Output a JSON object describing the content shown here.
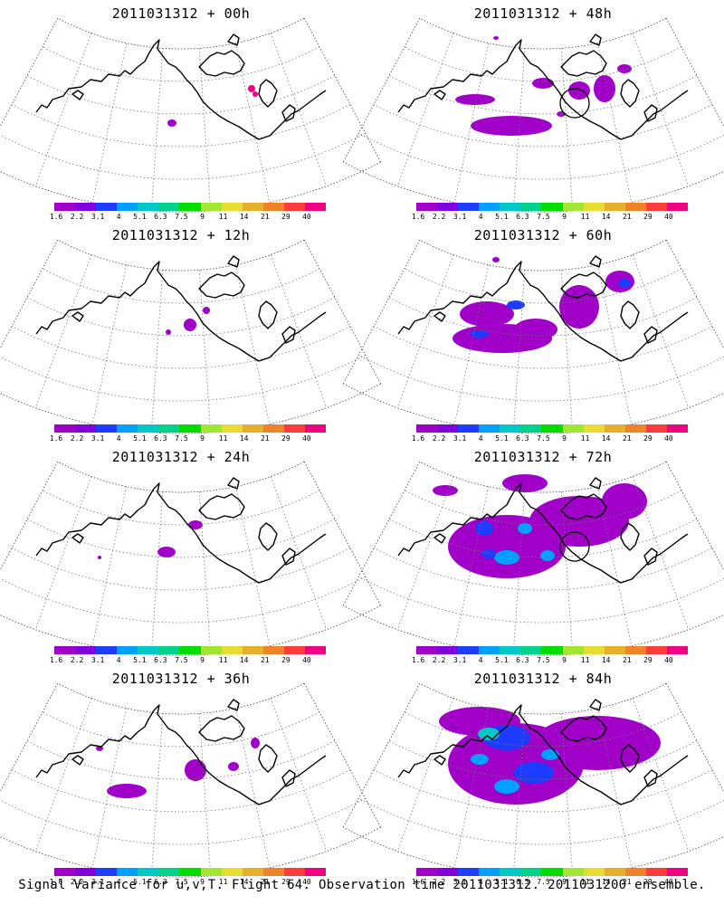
{
  "caption": "Signal Variance for u,v,T. Flight 64. Observation time 2011031312. 2011031200 ensemble.",
  "colorbar": {
    "labels": [
      "1.6",
      "2.2",
      "3.1",
      "4",
      "5.1",
      "6.3",
      "7.5",
      "9",
      "11",
      "14",
      "21",
      "29",
      "40"
    ],
    "colors": [
      "#a000c8",
      "#8200dc",
      "#1e3cff",
      "#00a0ff",
      "#00c8c8",
      "#00d28c",
      "#00dc00",
      "#a0e632",
      "#e6dc32",
      "#e6af2d",
      "#f08228",
      "#fa3c3c",
      "#f00082"
    ]
  },
  "panels": [
    {
      "title": "2011031312 + 00h",
      "circle": false,
      "blobs": [
        {
          "x": 170,
          "y": 112,
          "rx": 5,
          "ry": 4,
          "level": 0
        },
        {
          "x": 258,
          "y": 74,
          "rx": 4,
          "ry": 4,
          "level": 12
        },
        {
          "x": 262,
          "y": 80,
          "rx": 3,
          "ry": 3,
          "level": 12
        }
      ]
    },
    {
      "title": "2011031312 + 48h",
      "circle": true,
      "blobs": [
        {
          "x": 145,
          "y": 115,
          "rx": 45,
          "ry": 11,
          "level": 0
        },
        {
          "x": 105,
          "y": 86,
          "rx": 22,
          "ry": 6,
          "level": 0
        },
        {
          "x": 180,
          "y": 68,
          "rx": 12,
          "ry": 6,
          "level": 0
        },
        {
          "x": 220,
          "y": 76,
          "rx": 12,
          "ry": 10,
          "level": 0
        },
        {
          "x": 248,
          "y": 74,
          "rx": 12,
          "ry": 15,
          "level": 0
        },
        {
          "x": 270,
          "y": 52,
          "rx": 8,
          "ry": 5,
          "level": 0
        },
        {
          "x": 200,
          "y": 102,
          "rx": 5,
          "ry": 3,
          "level": 0
        },
        {
          "x": 128,
          "y": 18,
          "rx": 3,
          "ry": 2,
          "level": 0
        }
      ]
    },
    {
      "title": "2011031312 + 12h",
      "circle": false,
      "blobs": [
        {
          "x": 166,
          "y": 98,
          "rx": 3,
          "ry": 3,
          "level": 0
        },
        {
          "x": 190,
          "y": 90,
          "rx": 7,
          "ry": 7,
          "level": 0
        },
        {
          "x": 208,
          "y": 74,
          "rx": 4,
          "ry": 4,
          "level": 0
        }
      ]
    },
    {
      "title": "2011031312 + 60h",
      "circle": false,
      "blobs": [
        {
          "x": 135,
          "y": 105,
          "rx": 55,
          "ry": 16,
          "level": 0
        },
        {
          "x": 118,
          "y": 78,
          "rx": 30,
          "ry": 14,
          "level": 0
        },
        {
          "x": 220,
          "y": 70,
          "rx": 22,
          "ry": 24,
          "level": 0
        },
        {
          "x": 265,
          "y": 42,
          "rx": 16,
          "ry": 12,
          "level": 0
        },
        {
          "x": 172,
          "y": 95,
          "rx": 24,
          "ry": 12,
          "level": 0
        },
        {
          "x": 110,
          "y": 100,
          "rx": 10,
          "ry": 4,
          "level": 2
        },
        {
          "x": 150,
          "y": 68,
          "rx": 10,
          "ry": 5,
          "level": 2
        },
        {
          "x": 270,
          "y": 44,
          "rx": 7,
          "ry": 5,
          "level": 2
        },
        {
          "x": 128,
          "y": 18,
          "rx": 4,
          "ry": 3,
          "level": 0
        }
      ]
    },
    {
      "title": "2011031312 + 24h",
      "circle": false,
      "blobs": [
        {
          "x": 164,
          "y": 96,
          "rx": 10,
          "ry": 6,
          "level": 0
        },
        {
          "x": 196,
          "y": 66,
          "rx": 8,
          "ry": 5,
          "level": 0
        },
        {
          "x": 90,
          "y": 102,
          "rx": 2,
          "ry": 2,
          "level": 0
        }
      ]
    },
    {
      "title": "2011031312 + 72h",
      "circle": true,
      "blobs": [
        {
          "x": 140,
          "y": 90,
          "rx": 65,
          "ry": 35,
          "level": 0
        },
        {
          "x": 220,
          "y": 62,
          "rx": 55,
          "ry": 28,
          "level": 0
        },
        {
          "x": 160,
          "y": 20,
          "rx": 25,
          "ry": 10,
          "level": 0
        },
        {
          "x": 270,
          "y": 40,
          "rx": 25,
          "ry": 20,
          "level": 0
        },
        {
          "x": 72,
          "y": 28,
          "rx": 14,
          "ry": 6,
          "level": 0
        },
        {
          "x": 115,
          "y": 70,
          "rx": 10,
          "ry": 8,
          "level": 2
        },
        {
          "x": 140,
          "y": 102,
          "rx": 14,
          "ry": 8,
          "level": 3
        },
        {
          "x": 160,
          "y": 70,
          "rx": 8,
          "ry": 6,
          "level": 3
        },
        {
          "x": 185,
          "y": 100,
          "rx": 8,
          "ry": 6,
          "level": 3
        },
        {
          "x": 120,
          "y": 98,
          "rx": 8,
          "ry": 5,
          "level": 2
        }
      ]
    },
    {
      "title": "2011031312 + 36h",
      "circle": false,
      "blobs": [
        {
          "x": 120,
          "y": 115,
          "rx": 22,
          "ry": 8,
          "level": 0
        },
        {
          "x": 196,
          "y": 92,
          "rx": 12,
          "ry": 12,
          "level": 0
        },
        {
          "x": 238,
          "y": 88,
          "rx": 6,
          "ry": 5,
          "level": 0
        },
        {
          "x": 262,
          "y": 62,
          "rx": 5,
          "ry": 6,
          "level": 0
        },
        {
          "x": 90,
          "y": 68,
          "rx": 4,
          "ry": 3,
          "level": 0
        }
      ]
    },
    {
      "title": "2011031312 + 84h",
      "circle": false,
      "blobs": [
        {
          "x": 150,
          "y": 85,
          "rx": 75,
          "ry": 45,
          "level": 0
        },
        {
          "x": 240,
          "y": 62,
          "rx": 70,
          "ry": 30,
          "level": 0
        },
        {
          "x": 110,
          "y": 38,
          "rx": 45,
          "ry": 16,
          "level": 0
        },
        {
          "x": 140,
          "y": 56,
          "rx": 26,
          "ry": 14,
          "level": 2
        },
        {
          "x": 120,
          "y": 52,
          "rx": 12,
          "ry": 7,
          "level": 4
        },
        {
          "x": 170,
          "y": 95,
          "rx": 22,
          "ry": 12,
          "level": 2
        },
        {
          "x": 140,
          "y": 110,
          "rx": 14,
          "ry": 8,
          "level": 3
        },
        {
          "x": 188,
          "y": 75,
          "rx": 10,
          "ry": 6,
          "level": 3
        },
        {
          "x": 110,
          "y": 80,
          "rx": 10,
          "ry": 6,
          "level": 3
        }
      ]
    }
  ]
}
